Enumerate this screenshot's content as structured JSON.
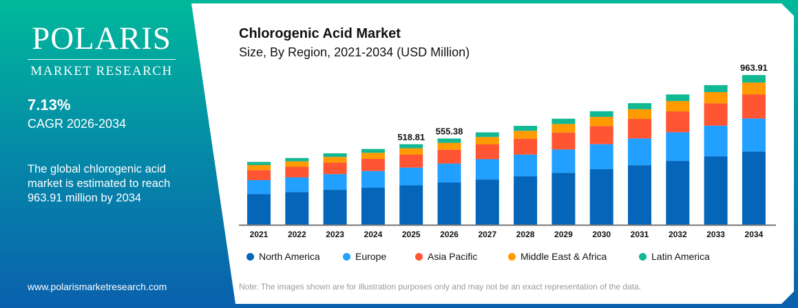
{
  "brand": {
    "name": "POLARIS",
    "tagline": "MARKET RESEARCH",
    "url": "www.polarismarketresearch.com"
  },
  "stats": {
    "cagr_value": "7.13%",
    "cagr_label": "CAGR 2026-2034",
    "description": "The global chlorogenic acid market is estimated to reach 963.91 million by 2034"
  },
  "note": "Note: The images shown are for illustration purposes only and may not be an exact representation of the data.",
  "chart_data": {
    "type": "bar",
    "stacked": true,
    "title": "Chlorogenic Acid Market",
    "subtitle": "Size, By Region, 2021-2034 (USD Million)",
    "categories": [
      "2021",
      "2022",
      "2023",
      "2024",
      "2025",
      "2026",
      "2027",
      "2028",
      "2029",
      "2030",
      "2031",
      "2032",
      "2033",
      "2034"
    ],
    "series": [
      {
        "name": "North America",
        "color": "#0565b8",
        "values": [
          198.5,
          210.7,
          225.4,
          239.1,
          254.2,
          272.1,
          291.6,
          312.1,
          334.7,
          358.2,
          383.7,
          411.1,
          440.5,
          472.3
        ]
      },
      {
        "name": "Europe",
        "color": "#21a0ff",
        "values": [
          89.1,
          94.6,
          101.2,
          107.4,
          114.1,
          122.2,
          130.9,
          140.1,
          150.3,
          160.8,
          172.3,
          184.6,
          197.8,
          212.1
        ]
      },
      {
        "name": "Asia Pacific",
        "color": "#ff5533",
        "values": [
          64.8,
          68.8,
          73.6,
          78.1,
          83.0,
          88.9,
          95.2,
          101.9,
          109.3,
          117.0,
          125.3,
          134.2,
          143.8,
          154.2
        ]
      },
      {
        "name": "Middle East & Africa",
        "color": "#ff9a00",
        "values": [
          32.4,
          34.4,
          36.8,
          39.0,
          41.5,
          44.4,
          47.6,
          51.0,
          54.6,
          58.5,
          62.6,
          67.1,
          71.9,
          77.1
        ]
      },
      {
        "name": "Latin America",
        "color": "#11b894",
        "values": [
          20.2,
          21.5,
          23.0,
          24.4,
          26.0,
          27.8,
          29.7,
          31.9,
          34.1,
          36.5,
          39.1,
          42.0,
          45.0,
          48.2
        ]
      }
    ],
    "data_labels": {
      "2025": "518.81",
      "2026": "555.38",
      "2034": "963.91"
    },
    "ylim": [
      0,
      1000
    ],
    "grid": false,
    "legend": "bottom"
  }
}
